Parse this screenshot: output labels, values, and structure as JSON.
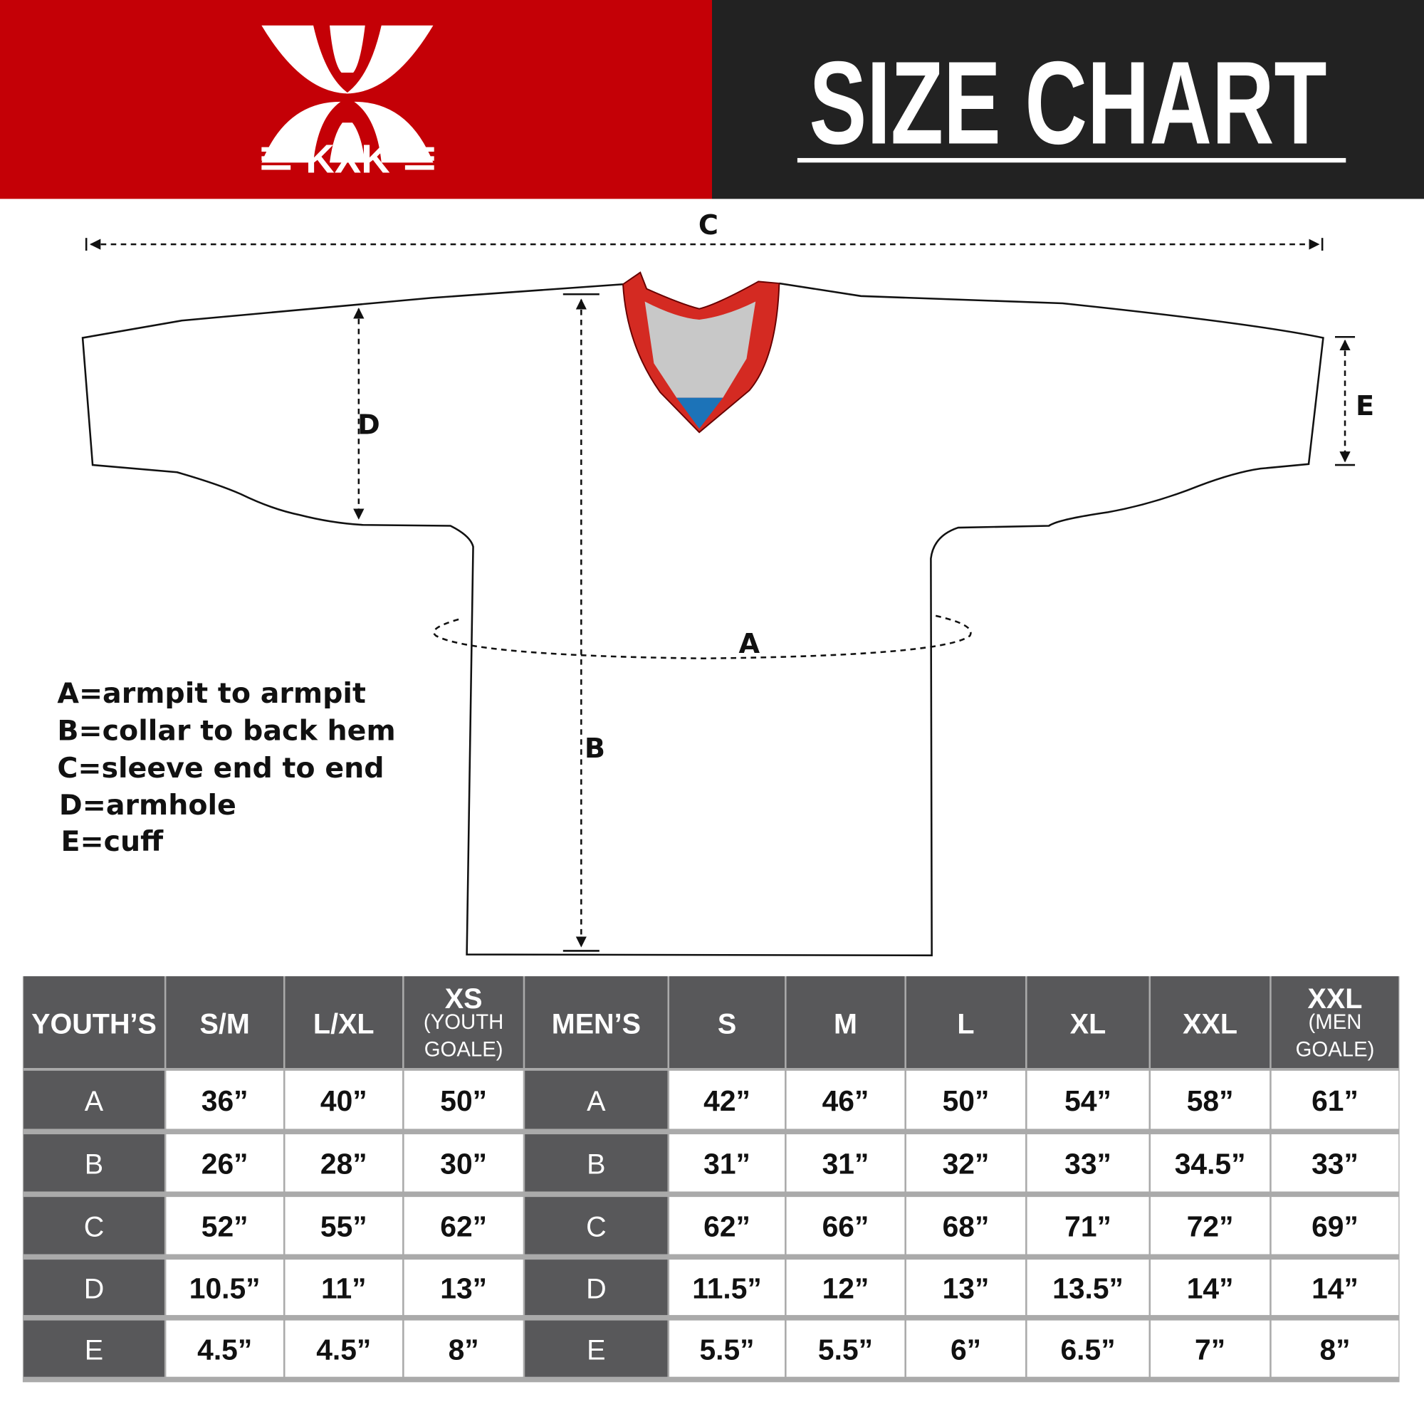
{
  "brand": {
    "name": "KXK",
    "primary_color": "#c40006",
    "dark_color": "#222222"
  },
  "header": {
    "title": "SIZE CHART"
  },
  "diagram": {
    "labels": {
      "a": "A",
      "b": "B",
      "c": "C",
      "d": "D",
      "e": "E"
    },
    "legend": [
      "A=armpit to armpit",
      "B=collar to back hem",
      "C=sleeve end to end",
      "D=armhole",
      "E=cuff"
    ]
  },
  "table": {
    "header": {
      "youth": "YOUTH’S",
      "youth_sizes": [
        {
          "main": "S/M"
        },
        {
          "main": "L/XL"
        },
        {
          "main": "XS",
          "sub1": "(YOUTH",
          "sub2": "GOALE)"
        }
      ],
      "men": "MEN’S",
      "men_sizes": [
        {
          "main": "S"
        },
        {
          "main": "M"
        },
        {
          "main": "L"
        },
        {
          "main": "XL"
        },
        {
          "main": "XXL"
        },
        {
          "main": "XXL",
          "sub1": "(MEN",
          "sub2": "GOALE)"
        }
      ]
    },
    "rows": [
      {
        "label": "A",
        "youth": [
          "36”",
          "40”",
          "50”"
        ],
        "men": [
          "42”",
          "46”",
          "50”",
          "54”",
          "58”",
          "61”"
        ]
      },
      {
        "label": "B",
        "youth": [
          "26”",
          "28”",
          "30”"
        ],
        "men": [
          "31”",
          "31”",
          "32”",
          "33”",
          "34.5”",
          "33”"
        ]
      },
      {
        "label": "C",
        "youth": [
          "52”",
          "55”",
          "62”"
        ],
        "men": [
          "62”",
          "66”",
          "68”",
          "71”",
          "72”",
          "69”"
        ]
      },
      {
        "label": "D",
        "youth": [
          "10.5”",
          "11”",
          "13”"
        ],
        "men": [
          "11.5”",
          "12”",
          "13”",
          "13.5”",
          "14”",
          "14”"
        ]
      },
      {
        "label": "E",
        "youth": [
          "4.5”",
          "4.5”",
          "8”"
        ],
        "men": [
          "5.5”",
          "5.5”",
          "6”",
          "6.5”",
          "7”",
          "8”"
        ]
      }
    ]
  }
}
